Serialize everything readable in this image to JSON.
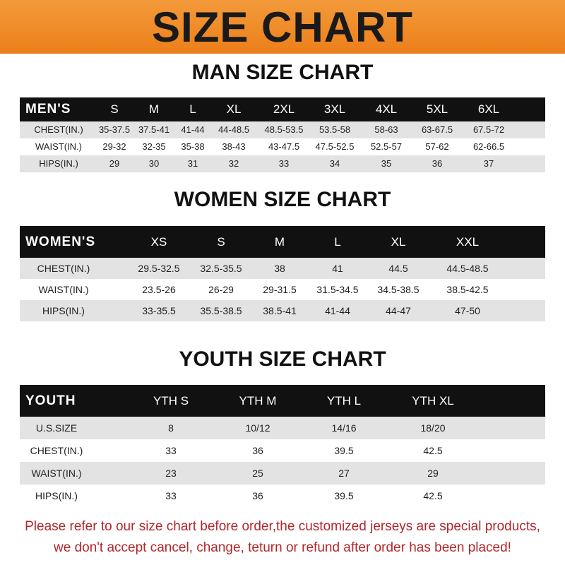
{
  "banner": {
    "title": "SIZE CHART"
  },
  "men": {
    "title": "MAN SIZE CHART",
    "header": [
      "MEN'S",
      "S",
      "M",
      "L",
      "XL",
      "2XL",
      "3XL",
      "4XL",
      "5XL",
      "6XL"
    ],
    "rows": [
      [
        "CHEST(IN.)",
        "35-37.5",
        "37.5-41",
        "41-44",
        "44-48.5",
        "48.5-53.5",
        "53.5-58",
        "58-63",
        "63-67.5",
        "67.5-72"
      ],
      [
        "WAIST(IN.)",
        "29-32",
        "32-35",
        "35-38",
        "38-43",
        "43-47.5",
        "47.5-52.5",
        "52.5-57",
        "57-62",
        "62-66.5"
      ],
      [
        "HIPS(IN.)",
        "29",
        "30",
        "31",
        "32",
        "33",
        "34",
        "35",
        "36",
        "37"
      ]
    ]
  },
  "women": {
    "title": "WOMEN SIZE CHART",
    "header": [
      "WOMEN'S",
      "XS",
      "S",
      "M",
      "L",
      "XL",
      "XXL"
    ],
    "rows": [
      [
        "CHEST(IN.)",
        "29.5-32.5",
        "32.5-35.5",
        "38",
        "41",
        "44.5",
        "44.5-48.5"
      ],
      [
        "WAIST(IN.)",
        "23.5-26",
        "26-29",
        "29-31.5",
        "31.5-34.5",
        "34.5-38.5",
        "38.5-42.5"
      ],
      [
        "HIPS(IN.)",
        "33-35.5",
        "35.5-38.5",
        "38.5-41",
        "41-44",
        "44-47",
        "47-50"
      ]
    ]
  },
  "youth": {
    "title": "YOUTH SIZE CHART",
    "header": [
      "YOUTH",
      "YTH S",
      "YTH M",
      "YTH L",
      "YTH XL"
    ],
    "rows": [
      [
        "U.S.SIZE",
        "8",
        "10/12",
        "14/16",
        "18/20"
      ],
      [
        "CHEST(IN.)",
        "33",
        "36",
        "39.5",
        "42.5"
      ],
      [
        "WAIST(IN.)",
        "23",
        "25",
        "27",
        "29"
      ],
      [
        "HIPS(IN.)",
        "33",
        "36",
        "39.5",
        "42.5"
      ]
    ]
  },
  "notice": {
    "line1": "Please refer to our size chart before order,the customized jerseys are special products,",
    "line2": "we don't accept cancel, change, teturn or refund after order has been placed!"
  },
  "colors": {
    "banner": "#ec7f1a",
    "header_row": "#111111",
    "stripe": "#e3e3e3",
    "notice": "#b3262a"
  }
}
